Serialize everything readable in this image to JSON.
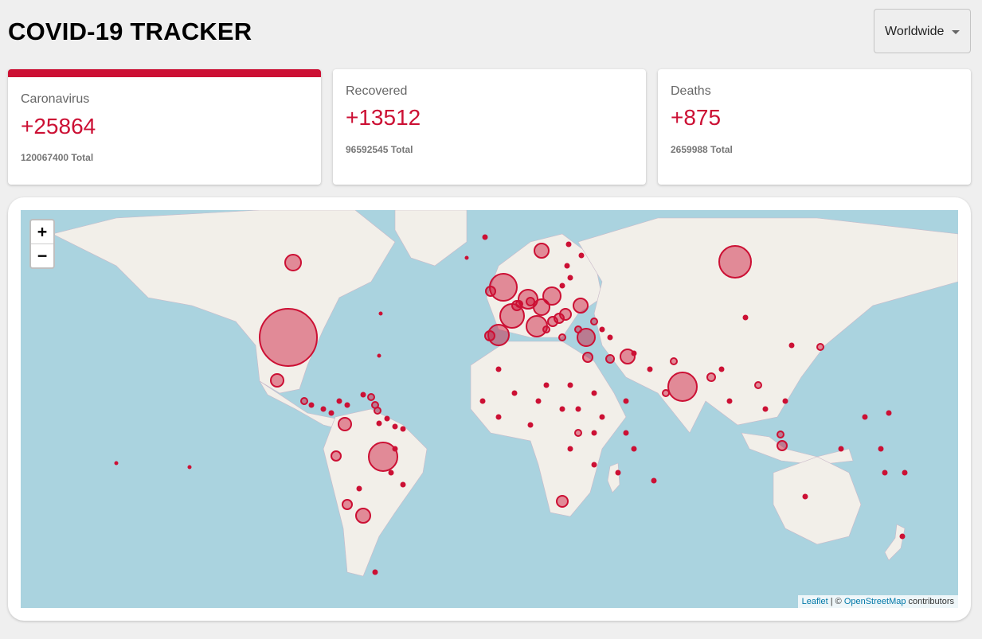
{
  "app": {
    "title": "COVID-19 TRACKER"
  },
  "country_select": {
    "selected": "Worldwide"
  },
  "cards": [
    {
      "title": "Caronavirus",
      "cases": "+25864",
      "total": "120067400 Total",
      "active": true
    },
    {
      "title": "Recovered",
      "cases": "+13512",
      "total": "96592545 Total",
      "active": false
    },
    {
      "title": "Deaths",
      "cases": "+875",
      "total": "2659988 Total",
      "active": false
    }
  ],
  "map": {
    "zoom_in": "+",
    "zoom_out": "−",
    "attribution": {
      "leaflet": "Leaflet",
      "sep": " | © ",
      "osm": "OpenStreetMap",
      "contributors": " contributors"
    },
    "colors": {
      "water": "#aad3df",
      "land": "#f2efe9",
      "circle": "#cc1034"
    }
  }
}
